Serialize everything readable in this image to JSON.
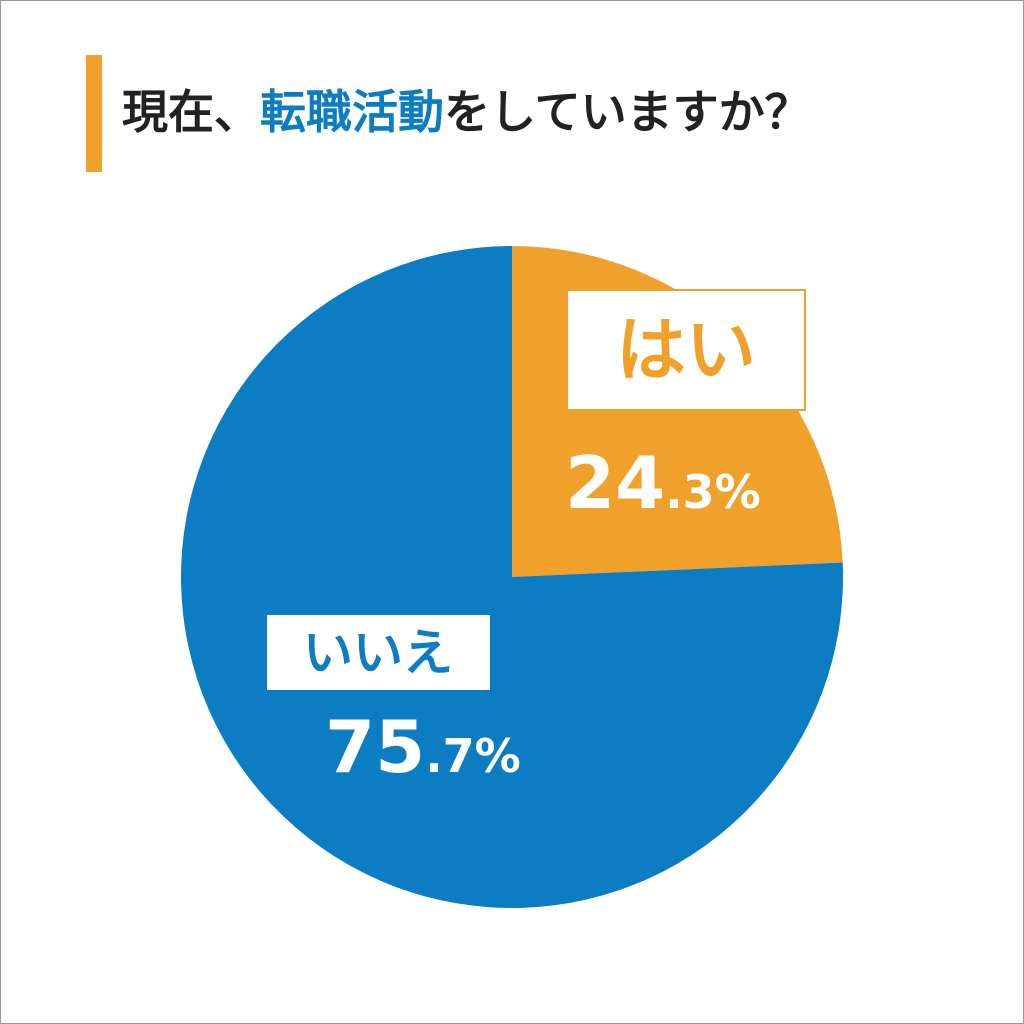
{
  "chart_data": {
    "type": "pie",
    "title": [
      "現在、",
      "転職活動",
      "をしていますか？"
    ],
    "title_color": "#222222",
    "title_highlight_color": "#0c7dc3",
    "categories": [
      "はい",
      "いいえ"
    ],
    "values": [
      24.3,
      75.7
    ],
    "value_labels": [
      "24.3%",
      "75.7%"
    ],
    "colors": [
      "#f0a12b",
      "#0c7dc3"
    ]
  }
}
